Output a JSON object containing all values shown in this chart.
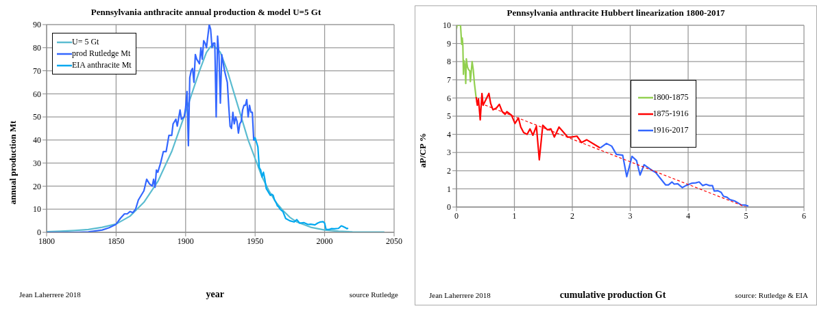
{
  "chart_data": [
    {
      "type": "line",
      "title": "Pennsylvania anthracite annual production & model U=5 Gt",
      "xlabel": "year",
      "ylabel": "annual production Mt",
      "xlim": [
        1800,
        2050
      ],
      "xticks": [
        1800,
        1850,
        1900,
        1950,
        2000,
        2050
      ],
      "ylim": [
        0,
        90
      ],
      "yticks": [
        0,
        10,
        20,
        30,
        40,
        50,
        60,
        70,
        80,
        90
      ],
      "grid": true,
      "legend": "top left",
      "marker": "none",
      "annotations": [
        "Jean Laherrere 2018",
        "source Rutledge"
      ],
      "series": [
        {
          "name": "U= 5 Gt",
          "color": "#5bbcd0",
          "x": [
            1800,
            1810,
            1820,
            1830,
            1840,
            1850,
            1860,
            1870,
            1880,
            1890,
            1900,
            1905,
            1910,
            1915,
            1918,
            1920,
            1925,
            1930,
            1935,
            1940,
            1945,
            1950,
            1955,
            1960,
            1965,
            1970,
            1975,
            1980,
            1990,
            2000,
            2010,
            2020,
            2030,
            2043
          ],
          "values": [
            0.3,
            0.5,
            0.8,
            1.2,
            2.2,
            3.6,
            7,
            13,
            22,
            35,
            52,
            61,
            70,
            78,
            80.5,
            81,
            78,
            70,
            60,
            50,
            40,
            32,
            24,
            18,
            13,
            9.5,
            6.5,
            4.5,
            2.2,
            1,
            0.5,
            0.2,
            0.1,
            0.1
          ]
        },
        {
          "name": "prod Rutledge Mt",
          "color": "#3366ff",
          "x": [
            1800,
            1820,
            1830,
            1840,
            1845,
            1850,
            1853,
            1856,
            1858,
            1860,
            1862,
            1864,
            1866,
            1868,
            1870,
            1872,
            1874,
            1876,
            1877,
            1878,
            1879,
            1880,
            1882,
            1884,
            1886,
            1888,
            1890,
            1891,
            1893,
            1894,
            1896,
            1897,
            1899,
            1900,
            1901,
            1902,
            1903,
            1904,
            1905,
            1906,
            1907,
            1908,
            1910,
            1911,
            1912,
            1913,
            1914,
            1915,
            1917,
            1918,
            1919,
            1920,
            1921,
            1922,
            1923,
            1924,
            1925,
            1926,
            1928,
            1930,
            1931,
            1932,
            1933,
            1934,
            1935,
            1936,
            1937,
            1938,
            1939,
            1940,
            1941,
            1942,
            1943,
            1944,
            1945,
            1946,
            1947,
            1948,
            1949,
            1950
          ],
          "values": [
            0,
            0,
            0.2,
            1,
            2,
            3.5,
            6,
            8,
            8,
            9,
            8.5,
            10,
            14,
            16,
            18,
            23,
            21,
            20,
            23,
            19.5,
            27,
            26,
            30,
            35,
            35,
            42,
            42,
            47,
            49,
            46,
            53,
            49,
            50,
            54,
            61,
            37.5,
            67,
            70,
            71,
            65,
            77,
            75,
            73,
            80,
            75,
            83,
            82,
            80,
            90,
            88,
            80,
            82,
            82,
            50,
            85,
            77,
            56,
            77,
            70,
            65,
            55,
            46,
            45,
            52,
            47,
            50,
            48,
            43,
            47,
            48,
            53,
            55,
            55,
            57.5,
            50,
            55,
            52,
            52,
            40,
            40
          ]
        },
        {
          "name": "EIA anthracite Mt",
          "color": "#00a8f0",
          "x": [
            1949,
            1950,
            1951,
            1952,
            1953,
            1954,
            1955,
            1956,
            1957,
            1958,
            1959,
            1960,
            1961,
            1962,
            1963,
            1964,
            1965,
            1966,
            1967,
            1968,
            1970,
            1972,
            1975,
            1978,
            1980,
            1982,
            1985,
            1988,
            1990,
            1993,
            1995,
            1997,
            1999,
            2000,
            2001,
            2003,
            2005,
            2007,
            2010,
            2012,
            2013,
            2015,
            2016,
            2017
          ],
          "values": [
            40,
            41,
            39,
            37,
            28,
            27,
            24,
            26,
            23,
            19,
            18,
            17,
            16,
            16.5,
            16,
            14,
            13,
            11.5,
            11,
            10,
            9,
            6,
            5,
            4.5,
            5.5,
            4,
            4.2,
            3.4,
            3.5,
            3.2,
            4,
            4.5,
            4.6,
            4,
            1.3,
            1.2,
            1.6,
            1.5,
            1.7,
            2.8,
            2.6,
            2,
            1.6,
            1.8
          ]
        }
      ]
    },
    {
      "type": "line",
      "title": "Pennsylvania anthracite Hubbert linearization 1800-2017",
      "xlabel": "cumulative production Gt",
      "ylabel": "aP/CP %",
      "xlim": [
        0,
        6
      ],
      "xticks": [
        0,
        1,
        2,
        3,
        4,
        5,
        6
      ],
      "ylim": [
        0,
        10
      ],
      "yticks": [
        0,
        1,
        2,
        3,
        4,
        5,
        6,
        7,
        8,
        9,
        10
      ],
      "grid": true,
      "legend": "center",
      "marker": "none",
      "annotations": [
        "Jean Laherrere 2018",
        "source: Rutledge & EIA"
      ],
      "series": [
        {
          "name": "1800-1875",
          "color": "#92d050",
          "x": [
            0,
            0.01,
            0.07,
            0.09,
            0.1,
            0.11,
            0.12,
            0.13,
            0.15,
            0.16,
            0.17,
            0.19,
            0.21,
            0.23,
            0.24,
            0.27,
            0.29,
            0.31,
            0.34
          ],
          "values": [
            9.8,
            10,
            10,
            8.95,
            9.3,
            8.9,
            7.3,
            8.05,
            7.7,
            6.8,
            8.15,
            7.7,
            7.55,
            7.5,
            6.9,
            8,
            7.55,
            6.8,
            6
          ]
        },
        {
          "name": "1875-1916",
          "color": "#ff0000",
          "x": [
            0.34,
            0.36,
            0.38,
            0.41,
            0.44,
            0.46,
            0.56,
            0.59,
            0.63,
            0.69,
            0.74,
            0.79,
            0.84,
            0.87,
            0.95,
            1.01,
            1.07,
            1.11,
            1.16,
            1.22,
            1.27,
            1.32,
            1.38,
            1.43,
            1.49,
            1.57,
            1.63,
            1.69,
            1.77,
            1.92,
            1.98,
            2.08,
            2.16,
            2.25,
            2.48
          ],
          "values": [
            6.05,
            5.6,
            5.95,
            4.8,
            6.25,
            5.6,
            6.25,
            5.7,
            5.35,
            5.45,
            5.65,
            5.25,
            5.1,
            5.25,
            5.05,
            4.6,
            4.9,
            4.4,
            4.1,
            4,
            4.3,
            3.95,
            4.45,
            2.6,
            4.5,
            4.25,
            4.3,
            3.85,
            4.4,
            3.85,
            3.85,
            3.9,
            3.55,
            3.7,
            3.25
          ]
        },
        {
          "name": "1916-2017",
          "color": "#3366ff",
          "x": [
            2.48,
            2.59,
            2.68,
            2.76,
            2.87,
            2.94,
            3.03,
            3.11,
            3.17,
            3.24,
            3.31,
            3.39,
            3.44,
            3.52,
            3.61,
            3.66,
            3.72,
            3.76,
            3.82,
            3.9,
            3.96,
            4.06,
            4.13,
            4.19,
            4.25,
            4.31,
            4.37,
            4.42,
            4.45,
            4.51,
            4.57,
            4.61,
            4.67,
            4.72,
            4.8,
            4.86,
            4.92,
            4.98,
            5.04
          ],
          "values": [
            3.25,
            3.5,
            3.35,
            2.9,
            2.85,
            1.67,
            2.79,
            2.55,
            1.76,
            2.33,
            2.17,
            1.99,
            1.9,
            1.58,
            1.22,
            1.22,
            1.38,
            1.26,
            1.28,
            1.07,
            1.18,
            1.31,
            1.33,
            1.38,
            1.18,
            1.25,
            1.18,
            1.18,
            0.88,
            0.9,
            0.81,
            0.59,
            0.54,
            0.41,
            0.34,
            0.23,
            0.11,
            0.11,
            0.05
          ]
        },
        {
          "type": "line",
          "color": "#ff0000",
          "line_style": "dashed",
          "x": [
            0.34,
            5.0
          ],
          "values": [
            5.8,
            0
          ]
        }
      ]
    }
  ]
}
